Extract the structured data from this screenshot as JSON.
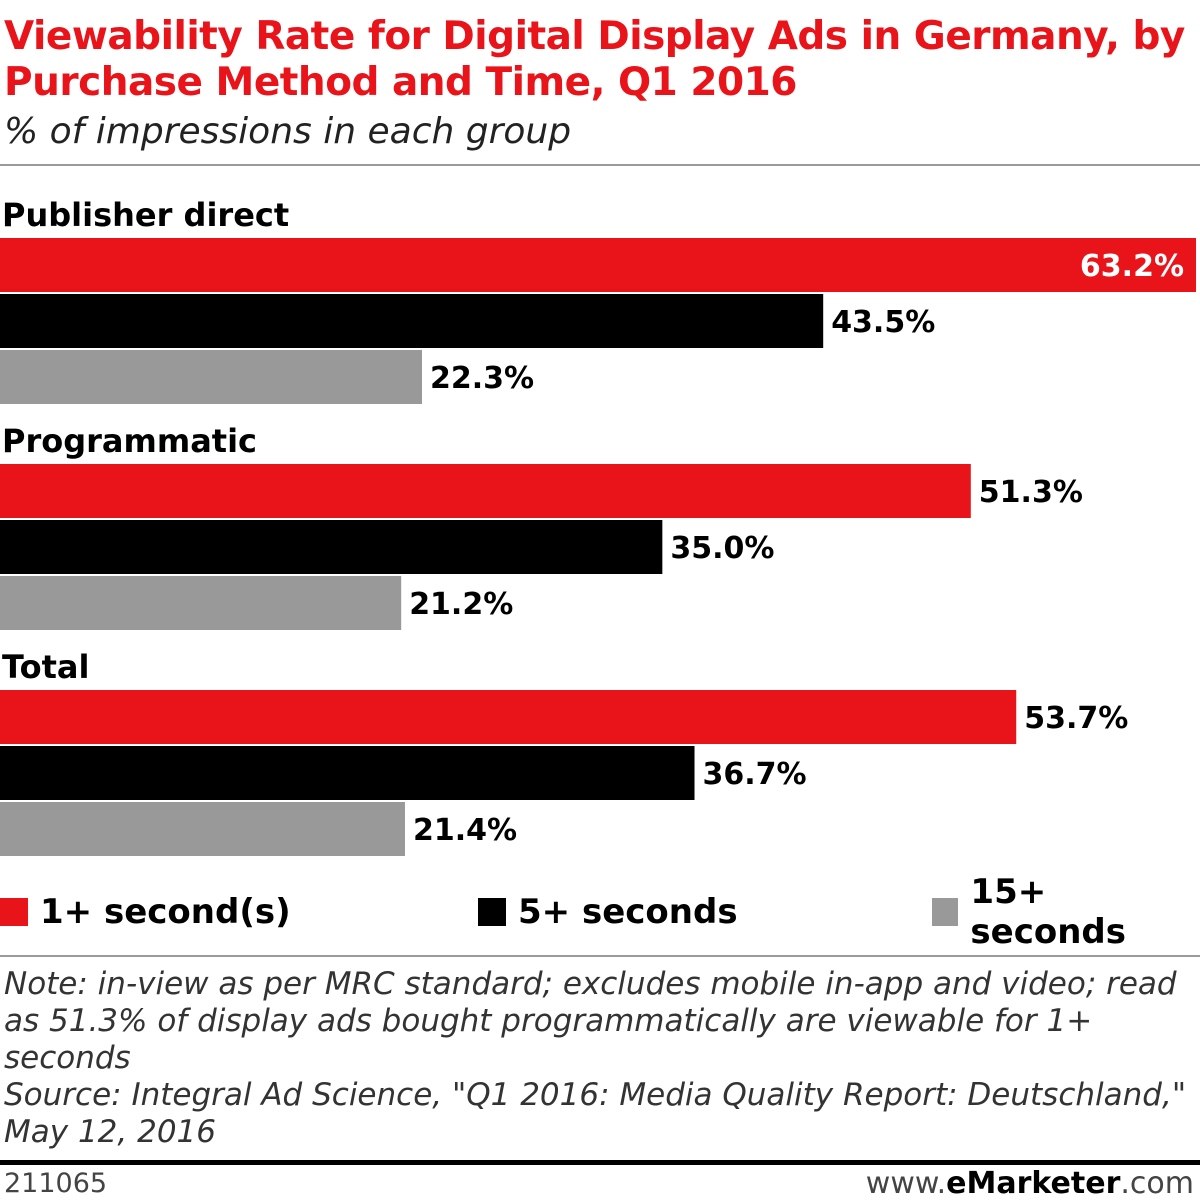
{
  "title": "Viewability Rate for Digital Display Ads in Germany, by Purchase Method and Time, Q1 2016",
  "subtitle": "% of impressions in each group",
  "colors": {
    "red": "#e8141a",
    "black": "#000000",
    "gray": "#999999"
  },
  "chart_data": {
    "type": "bar",
    "orientation": "horizontal",
    "categories": [
      "Publisher direct",
      "Programmatic",
      "Total"
    ],
    "series": [
      {
        "name": "1+ second(s)",
        "color": "#e8141a",
        "values": [
          63.2,
          51.3,
          53.7
        ]
      },
      {
        "name": "5+ seconds",
        "color": "#000000",
        "values": [
          43.5,
          35.0,
          36.7
        ]
      },
      {
        "name": "15+ seconds",
        "color": "#999999",
        "values": [
          22.3,
          21.2,
          21.4
        ]
      }
    ],
    "value_suffix": "%",
    "xlim": [
      0,
      63.2
    ],
    "grid": false,
    "legend_position": "bottom"
  },
  "legend": [
    {
      "label": "1+ second(s)",
      "color": "#e8141a"
    },
    {
      "label": "5+ seconds",
      "color": "#000000"
    },
    {
      "label": "15+ seconds",
      "color": "#999999"
    }
  ],
  "note": "Note: in-view as per MRC standard; excludes mobile in-app and video; read as 51.3% of display ads bought programmatically are viewable for 1+ seconds",
  "source": "Source: Integral Ad Science, \"Q1 2016: Media Quality Report: Deutschland,\" May 12, 2016",
  "footer": {
    "chart_id": "211065",
    "brand_prefix": "www.",
    "brand_name": "eMarketer",
    "brand_suffix": ".com"
  }
}
